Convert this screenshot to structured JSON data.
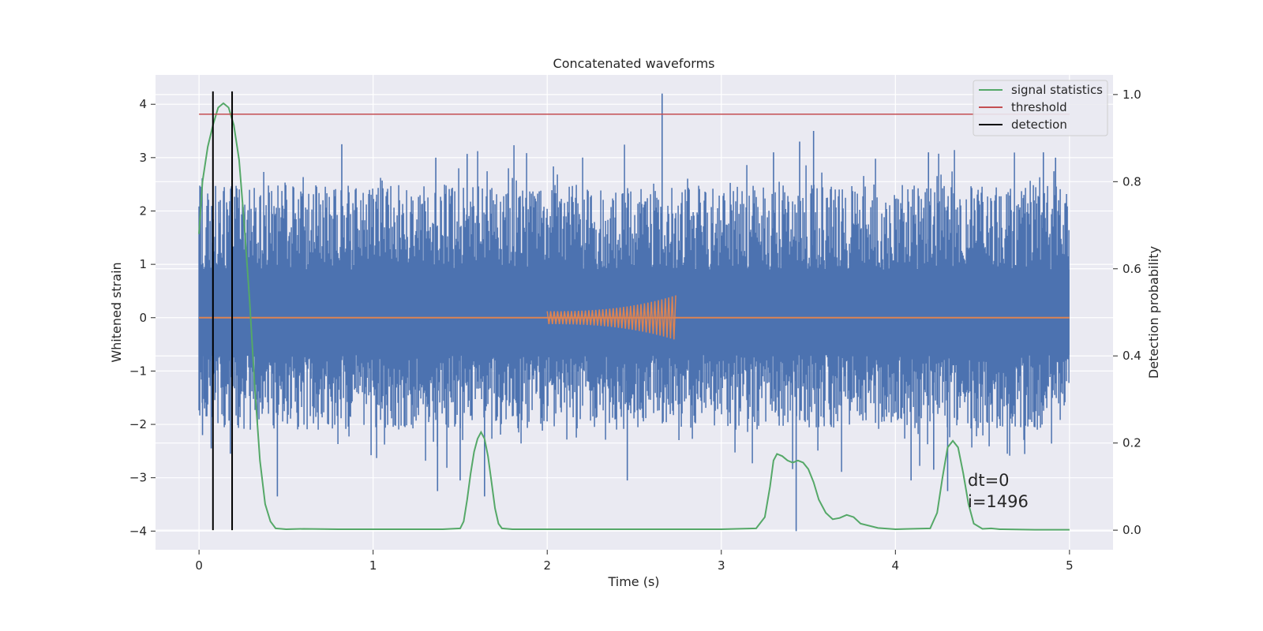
{
  "chart_data": {
    "type": "line",
    "title": "Concatenated waveforms",
    "xlabel": "Time (s)",
    "ylabel": "Whitened strain",
    "y2label": "Detection probability",
    "xlim": [
      -0.25,
      5.25
    ],
    "ylim": [
      -4.35,
      4.55
    ],
    "y2lim": [
      -0.045,
      1.045
    ],
    "x_ticks": [
      0,
      1,
      2,
      3,
      4,
      5
    ],
    "y_ticks": [
      -4,
      -3,
      -2,
      -1,
      0,
      1,
      2,
      3,
      4
    ],
    "y2_ticks": [
      0.0,
      0.2,
      0.4,
      0.6,
      0.8,
      1.0
    ],
    "grid": true,
    "legend_position": "top-right",
    "colors": {
      "background": "#eaeaf2",
      "strain": "#4c72b0",
      "waveform": "#dd8452",
      "signal_statistics": "#55a868",
      "threshold": "#c44e52",
      "detection": "#000000",
      "grid": "#ffffff"
    },
    "series": [
      {
        "name": "",
        "axis": "left",
        "kind": "noise",
        "x_range": [
          0,
          5
        ],
        "amplitude_band": [
          -0.7,
          0.9
        ],
        "peaks_high": [
          [
            0.82,
            3.25
          ],
          [
            1.36,
            3.0
          ],
          [
            1.54,
            3.07
          ],
          [
            2.66,
            4.2
          ],
          [
            3.3,
            3.1
          ],
          [
            3.45,
            3.3
          ],
          [
            3.53,
            3.5
          ],
          [
            4.19,
            3.1
          ],
          [
            4.85,
            3.1
          ],
          [
            4.92,
            3.0
          ]
        ],
        "peaks_low": [
          [
            0.02,
            -2.2
          ],
          [
            0.07,
            -2.45
          ],
          [
            0.18,
            -2.55
          ],
          [
            0.45,
            -3.35
          ],
          [
            1.37,
            -3.25
          ],
          [
            1.5,
            -3.05
          ],
          [
            1.64,
            -3.35
          ],
          [
            2.46,
            -3.05
          ],
          [
            3.43,
            -4.0
          ],
          [
            4.09,
            -3.05
          ],
          [
            4.22,
            -2.85
          ],
          [
            4.3,
            -3.25
          ]
        ]
      },
      {
        "name": "",
        "axis": "left",
        "kind": "chirp",
        "x_range": [
          2.0,
          2.74
        ],
        "amplitude_start": 0.12,
        "amplitude_end": 0.42
      },
      {
        "name": "signal statistics",
        "axis": "right",
        "x": [
          0.0,
          0.02,
          0.05,
          0.08,
          0.11,
          0.14,
          0.17,
          0.2,
          0.23,
          0.26,
          0.29,
          0.32,
          0.35,
          0.38,
          0.41,
          0.44,
          0.5,
          0.6,
          0.8,
          1.0,
          1.2,
          1.4,
          1.5,
          1.52,
          1.54,
          1.56,
          1.58,
          1.6,
          1.62,
          1.64,
          1.66,
          1.68,
          1.7,
          1.72,
          1.74,
          1.8,
          2.0,
          2.5,
          3.0,
          3.2,
          3.25,
          3.28,
          3.3,
          3.32,
          3.35,
          3.38,
          3.41,
          3.44,
          3.47,
          3.5,
          3.53,
          3.56,
          3.6,
          3.64,
          3.68,
          3.72,
          3.76,
          3.8,
          3.9,
          4.0,
          4.2,
          4.24,
          4.27,
          4.3,
          4.33,
          4.36,
          4.39,
          4.42,
          4.45,
          4.5,
          4.55,
          4.6,
          4.8,
          5.0
        ],
        "values": [
          0.68,
          0.8,
          0.88,
          0.93,
          0.97,
          0.98,
          0.97,
          0.93,
          0.85,
          0.7,
          0.53,
          0.33,
          0.16,
          0.06,
          0.02,
          0.004,
          0.002,
          0.003,
          0.002,
          0.002,
          0.002,
          0.002,
          0.004,
          0.02,
          0.07,
          0.13,
          0.18,
          0.21,
          0.225,
          0.21,
          0.17,
          0.11,
          0.05,
          0.015,
          0.004,
          0.002,
          0.002,
          0.002,
          0.002,
          0.004,
          0.03,
          0.1,
          0.16,
          0.175,
          0.17,
          0.16,
          0.155,
          0.16,
          0.155,
          0.14,
          0.11,
          0.07,
          0.04,
          0.025,
          0.028,
          0.035,
          0.03,
          0.015,
          0.005,
          0.002,
          0.004,
          0.04,
          0.12,
          0.19,
          0.205,
          0.19,
          0.13,
          0.06,
          0.015,
          0.003,
          0.004,
          0.002,
          0.001,
          0.001
        ]
      },
      {
        "name": "threshold",
        "axis": "right",
        "x": [
          0,
          5.0
        ],
        "values": [
          0.955,
          0.955
        ]
      },
      {
        "name": "detection",
        "axis": "right",
        "kind": "vlines",
        "x": [
          0.08,
          0.19
        ],
        "y_range": [
          0,
          1.0
        ]
      }
    ],
    "annotations": [
      "dt=0",
      "i=1496"
    ]
  }
}
